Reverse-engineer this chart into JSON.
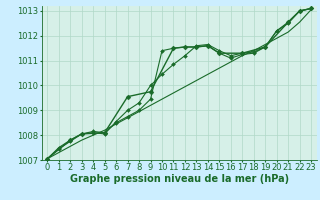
{
  "background_color": "#cceeff",
  "plot_bg_color": "#d6f0e8",
  "grid_color": "#b0d8c8",
  "line_color": "#1a6b2a",
  "xlabel": "Graphe pression niveau de la mer (hPa)",
  "xlabel_fontsize": 7,
  "tick_fontsize": 6,
  "xlim": [
    -0.5,
    23.5
  ],
  "ylim": [
    1007,
    1013.2
  ],
  "yticks": [
    1007,
    1008,
    1009,
    1010,
    1011,
    1012,
    1013
  ],
  "xticks": [
    0,
    1,
    2,
    3,
    4,
    5,
    6,
    7,
    8,
    9,
    10,
    11,
    12,
    13,
    14,
    15,
    16,
    17,
    18,
    19,
    20,
    21,
    22,
    23
  ],
  "series": [
    {
      "x": [
        0,
        1,
        2,
        3,
        4,
        5,
        6,
        7,
        8,
        9,
        10,
        11,
        12,
        13,
        14,
        15,
        16,
        17,
        18,
        19,
        20,
        21,
        22,
        23
      ],
      "y": [
        1007.05,
        1007.3,
        1007.55,
        1007.8,
        1008.0,
        1008.2,
        1008.45,
        1008.7,
        1008.95,
        1009.2,
        1009.45,
        1009.7,
        1009.95,
        1010.2,
        1010.45,
        1010.7,
        1010.95,
        1011.2,
        1011.4,
        1011.65,
        1011.9,
        1012.15,
        1012.55,
        1013.05
      ],
      "marker": null,
      "markersize": 0,
      "linewidth": 0.8,
      "linestyle": "-"
    },
    {
      "x": [
        0,
        1,
        2,
        3,
        4,
        5,
        6,
        7,
        8,
        9,
        10,
        11,
        12,
        13,
        14,
        15,
        16,
        17,
        18,
        19,
        20,
        21,
        22,
        23
      ],
      "y": [
        1007.05,
        1007.5,
        1007.8,
        1008.05,
        1008.15,
        1008.1,
        1008.5,
        1008.75,
        1009.0,
        1009.45,
        1011.4,
        1011.5,
        1011.55,
        1011.55,
        1011.6,
        1011.3,
        1011.1,
        1011.25,
        1011.3,
        1011.55,
        1012.2,
        1012.5,
        1013.0,
        1013.1
      ],
      "marker": "D",
      "markersize": 2.0,
      "linewidth": 0.8,
      "linestyle": "-"
    },
    {
      "x": [
        0,
        1,
        2,
        3,
        4,
        5,
        6,
        7,
        8,
        9,
        10,
        11,
        12,
        13,
        14,
        15,
        16,
        17,
        18,
        19,
        20,
        21,
        22,
        23
      ],
      "y": [
        1007.05,
        1007.45,
        1007.75,
        1008.05,
        1008.1,
        1008.05,
        1008.55,
        1009.0,
        1009.3,
        1010.0,
        1010.45,
        1010.85,
        1011.2,
        1011.6,
        1011.65,
        1011.4,
        1011.2,
        1011.3,
        1011.35,
        1011.55,
        1012.2,
        1012.55,
        1013.0,
        1013.1
      ],
      "marker": "D",
      "markersize": 2.0,
      "linewidth": 0.8,
      "linestyle": "-"
    },
    {
      "x": [
        0,
        2,
        3,
        5,
        7,
        9,
        11,
        12,
        13,
        14,
        15,
        17,
        19,
        21,
        22,
        23
      ],
      "y": [
        1007.05,
        1007.8,
        1008.05,
        1008.1,
        1009.55,
        1009.75,
        1011.5,
        1011.55,
        1011.55,
        1011.6,
        1011.3,
        1011.3,
        1011.55,
        1012.55,
        1013.0,
        1013.1
      ],
      "marker": "D",
      "markersize": 2.5,
      "linewidth": 1.0,
      "linestyle": "-"
    }
  ]
}
